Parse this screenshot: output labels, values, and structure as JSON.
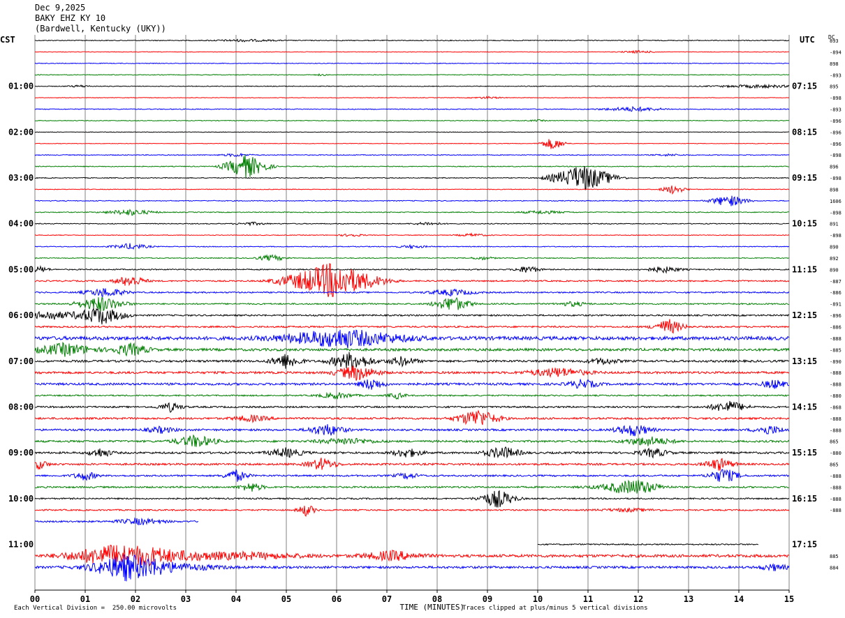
{
  "header": {
    "date": "Dec 9,2025",
    "station": "BAKY EHZ KY 10",
    "location": "(Bardwell, Kentucky (UKY))"
  },
  "left_axis_label": "CST",
  "right_axis_label": "UTC",
  "dc_label": "DC",
  "footer": {
    "scale_note": "Each Vertical Division =  250.00 microvolts",
    "clip_note": "Traces clipped at plus/minus 5 vertical divisions"
  },
  "colors": {
    "c0": "#000000",
    "c1": "#ff0000",
    "c2": "#0000ff",
    "c3": "#007f00",
    "grid": "#808080"
  },
  "chart_data": {
    "type": "line",
    "title": "",
    "xlabel": "TIME (MINUTES)",
    "x_ticks": [
      "00",
      "01",
      "02",
      "03",
      "04",
      "05",
      "06",
      "07",
      "08",
      "09",
      "10",
      "11",
      "12",
      "13",
      "14",
      "15"
    ],
    "xlim": [
      0,
      15
    ],
    "grid": true,
    "line_interval_minutes": 15,
    "hour_labels_cst": [
      "01:00",
      "02:00",
      "03:00",
      "04:00",
      "05:00",
      "06:00",
      "07:00",
      "08:00",
      "09:00",
      "10:00",
      "11:00"
    ],
    "hour_labels_utc": [
      "07:15",
      "08:15",
      "09:15",
      "10:15",
      "11:15",
      "12:15",
      "13:15",
      "14:15",
      "15:15",
      "16:15",
      "17:15"
    ],
    "dc_offsets": [
      "893",
      "-894",
      "898",
      "-893",
      "895",
      "-898",
      "-893",
      "-896",
      "-896",
      "-896",
      "-898",
      "896",
      "-898",
      "898",
      "1606",
      "-898",
      "891",
      "-898",
      "890",
      "892",
      "890",
      "-887",
      "-886",
      "-891",
      "-896",
      "-886",
      "-888",
      "-885",
      "-890",
      "-888",
      "-888",
      "-880",
      "-868",
      "-888",
      "-888",
      "865",
      "-880",
      "865",
      "-888",
      "-888",
      "-888",
      "-888",
      "",
      "",
      "",
      "885",
      "884"
    ],
    "traces": [
      {
        "amp": 0.6,
        "events": [
          [
            4.2,
            0.7,
            1
          ]
        ]
      },
      {
        "amp": 0.4,
        "events": [
          [
            12.0,
            0.8,
            0.6
          ]
        ]
      },
      {
        "amp": 0.5,
        "events": []
      },
      {
        "amp": 0.5,
        "events": [
          [
            5.7,
            0.6,
            0.2
          ]
        ]
      },
      {
        "amp": 0.5,
        "events": [
          [
            0.9,
            0.7,
            0.4
          ],
          [
            14.4,
            1,
            1.5
          ]
        ]
      },
      {
        "amp": 0.4,
        "events": [
          [
            9.0,
            0.7,
            0.5
          ]
        ]
      },
      {
        "amp": 0.6,
        "events": [
          [
            11.9,
            1.5,
            1
          ]
        ]
      },
      {
        "amp": 0.5,
        "events": [
          [
            10.0,
            0.5,
            0.3
          ]
        ]
      },
      {
        "amp": 0.4,
        "events": []
      },
      {
        "amp": 0.4,
        "events": [
          [
            10.3,
            4,
            0.4
          ]
        ]
      },
      {
        "amp": 0.6,
        "events": [
          [
            4.0,
            1,
            0.5
          ],
          [
            12.6,
            0.6,
            0.5
          ]
        ]
      },
      {
        "amp": 0.6,
        "events": [
          [
            4.2,
            8,
            0.7
          ]
        ]
      },
      {
        "amp": 0.6,
        "events": [
          [
            10.9,
            9,
            1
          ]
        ]
      },
      {
        "amp": 0.5,
        "events": [
          [
            12.7,
            3,
            0.4
          ]
        ]
      },
      {
        "amp": 0.6,
        "events": [
          [
            13.8,
            4,
            0.6
          ]
        ]
      },
      {
        "amp": 0.6,
        "events": [
          [
            1.9,
            2,
            0.8
          ],
          [
            10.1,
            1,
            0.8
          ]
        ]
      },
      {
        "amp": 0.6,
        "events": [
          [
            4.3,
            1,
            0.5
          ],
          [
            7.8,
            1,
            0.5
          ]
        ]
      },
      {
        "amp": 0.5,
        "events": [
          [
            6.3,
            1,
            0.4
          ],
          [
            8.7,
            1,
            0.5
          ]
        ]
      },
      {
        "amp": 0.6,
        "events": [
          [
            1.9,
            2,
            0.6
          ],
          [
            7.5,
            1,
            0.5
          ]
        ]
      },
      {
        "amp": 0.6,
        "events": [
          [
            4.7,
            2,
            0.5
          ],
          [
            8.9,
            1,
            0.4
          ]
        ]
      },
      {
        "amp": 0.8,
        "events": [
          [
            0.1,
            2,
            0.3
          ],
          [
            9.8,
            2.5,
            0.4
          ],
          [
            12.5,
            2,
            0.6
          ]
        ]
      },
      {
        "amp": 1,
        "events": [
          [
            1.9,
            4,
            0.5
          ],
          [
            5.9,
            12,
            1.5
          ]
        ]
      },
      {
        "amp": 1,
        "events": [
          [
            1.4,
            3,
            0.7
          ],
          [
            8.3,
            2,
            0.8
          ]
        ]
      },
      {
        "amp": 1,
        "events": [
          [
            1.3,
            5,
            0.8
          ],
          [
            8.3,
            5,
            0.6
          ],
          [
            10.7,
            1.5,
            0.5
          ]
        ]
      },
      {
        "amp": 1.1,
        "events": [
          [
            0.3,
            3,
            0.8
          ],
          [
            1.3,
            6,
            0.8
          ]
        ]
      },
      {
        "amp": 1.2,
        "events": [
          [
            12.6,
            5,
            0.5
          ]
        ]
      },
      {
        "amp": 2.5,
        "events": [
          [
            6.1,
            6,
            2
          ]
        ]
      },
      {
        "amp": 1.8,
        "events": [
          [
            0.6,
            4,
            1
          ],
          [
            1.9,
            4,
            0.6
          ]
        ]
      },
      {
        "amp": 1.5,
        "events": [
          [
            5.0,
            5,
            0.5
          ],
          [
            6.3,
            6,
            0.7
          ],
          [
            7.3,
            3,
            0.5
          ],
          [
            11.3,
            2,
            0.5
          ]
        ]
      },
      {
        "amp": 1.6,
        "events": [
          [
            6.4,
            5,
            0.7
          ],
          [
            10.4,
            3,
            1
          ]
        ]
      },
      {
        "amp": 1.6,
        "events": [
          [
            6.7,
            4,
            0.4
          ],
          [
            10.9,
            3,
            0.5
          ],
          [
            14.7,
            3,
            0.4
          ]
        ]
      },
      {
        "amp": 1,
        "events": [
          [
            6.0,
            2,
            0.6
          ],
          [
            7.2,
            2,
            0.3
          ]
        ]
      },
      {
        "amp": 1.2,
        "events": [
          [
            2.7,
            3,
            0.4
          ],
          [
            13.8,
            4,
            0.6
          ]
        ]
      },
      {
        "amp": 1.4,
        "events": [
          [
            4.3,
            2,
            0.6
          ],
          [
            8.8,
            6,
            0.7
          ]
        ]
      },
      {
        "amp": 1.4,
        "events": [
          [
            2.5,
            2,
            0.5
          ],
          [
            5.8,
            4,
            0.6
          ],
          [
            11.9,
            4,
            0.6
          ],
          [
            14.6,
            3,
            0.5
          ]
        ]
      },
      {
        "amp": 1.4,
        "events": [
          [
            3.2,
            4,
            0.7
          ],
          [
            6.2,
            2,
            1
          ],
          [
            12.2,
            3,
            0.8
          ]
        ]
      },
      {
        "amp": 1.4,
        "events": [
          [
            1.3,
            3,
            0.4
          ],
          [
            5.0,
            3,
            0.6
          ],
          [
            7.4,
            3,
            0.5
          ],
          [
            9.3,
            4,
            0.6
          ],
          [
            12.3,
            3,
            0.5
          ]
        ]
      },
      {
        "amp": 1.4,
        "events": [
          [
            0.1,
            3,
            0.3
          ],
          [
            5.7,
            4,
            0.5
          ],
          [
            13.6,
            4,
            0.5
          ]
        ]
      },
      {
        "amp": 1.2,
        "events": [
          [
            1.0,
            3,
            0.4
          ],
          [
            4.0,
            4,
            0.4
          ],
          [
            7.4,
            2,
            0.4
          ],
          [
            13.7,
            5,
            0.5
          ]
        ]
      },
      {
        "amp": 1.2,
        "events": [
          [
            4.3,
            3,
            0.4
          ],
          [
            11.6,
            2,
            1
          ],
          [
            12.0,
            4,
            0.8
          ]
        ]
      },
      {
        "amp": 1,
        "events": [
          [
            9.2,
            6,
            0.6
          ]
        ]
      },
      {
        "amp": 1,
        "events": [
          [
            5.4,
            4,
            0.3
          ],
          [
            11.8,
            1,
            1
          ]
        ]
      },
      {
        "amp": 1.2,
        "events": [
          [
            2.1,
            2,
            0.8
          ]
        ],
        "start": 0,
        "end": 3.25
      },
      {
        "amp": 0,
        "events": [],
        "start": 0,
        "end": 0
      },
      {
        "amp": 0.9,
        "events": [],
        "start": 10.0,
        "end": 14.4
      },
      {
        "amp": 2,
        "events": [
          [
            1.5,
            5,
            1.5
          ],
          [
            2.3,
            4,
            2
          ],
          [
            4.2,
            2,
            2
          ],
          [
            7.1,
            3,
            1
          ]
        ]
      },
      {
        "amp": 1.6,
        "events": [
          [
            1.8,
            6,
            1
          ],
          [
            2.3,
            4,
            2
          ],
          [
            14.7,
            2,
            0.5
          ]
        ]
      }
    ]
  }
}
